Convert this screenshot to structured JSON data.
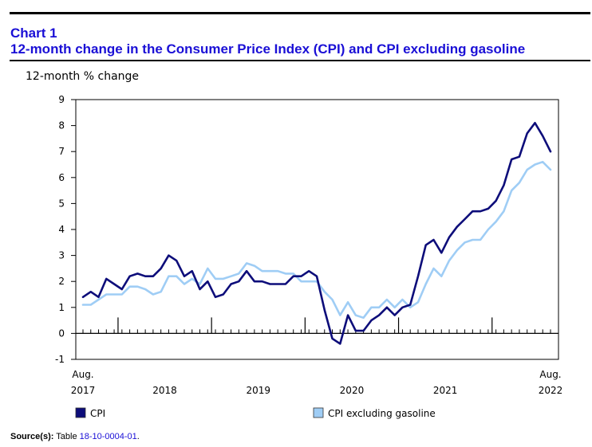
{
  "header": {
    "chart_number": "Chart 1",
    "title": "12-month change in the Consumer Price Index (CPI) and CPI excluding gasoline"
  },
  "source": {
    "label": "Source(s):",
    "text": "Table",
    "link": "18-10-0004-01",
    "suffix": "."
  },
  "colors": {
    "cpi": "#0d0d7a",
    "cpi_ex_gas": "#9fcdf5",
    "title": "#1a0fd6"
  },
  "chart_data": {
    "type": "line",
    "title": "12-month change in the Consumer Price Index (CPI) and CPI excluding gasoline",
    "ylabel": "12-month % change",
    "xlabel": "",
    "ylim": [
      -1,
      9
    ],
    "yticks": [
      -1,
      0,
      1,
      2,
      3,
      4,
      5,
      6,
      7,
      8,
      9
    ],
    "x_start": "Aug. 2017",
    "x_end": "Aug. 2022",
    "x_tick_labels": [
      {
        "month_index": 0,
        "line1": "Aug.",
        "line2": "2017"
      },
      {
        "month_index": 10.5,
        "line1": "",
        "line2": "2018"
      },
      {
        "month_index": 22.5,
        "line1": "",
        "line2": "2019"
      },
      {
        "month_index": 34.5,
        "line1": "",
        "line2": "2020"
      },
      {
        "month_index": 46.5,
        "line1": "",
        "line2": "2021"
      },
      {
        "month_index": 60,
        "line1": "Aug.",
        "line2": "2022"
      }
    ],
    "year_boundaries": [
      5,
      17,
      29,
      41,
      53
    ],
    "series": [
      {
        "name": "CPI",
        "values": [
          1.4,
          1.6,
          1.4,
          2.1,
          1.9,
          1.7,
          2.2,
          2.3,
          2.2,
          2.2,
          2.5,
          3.0,
          2.8,
          2.2,
          2.4,
          1.7,
          2.0,
          1.4,
          1.5,
          1.9,
          2.0,
          2.4,
          2.0,
          2.0,
          1.9,
          1.9,
          1.9,
          2.2,
          2.2,
          2.4,
          2.2,
          0.9,
          -0.2,
          -0.4,
          0.7,
          0.1,
          0.1,
          0.5,
          0.7,
          1.0,
          0.7,
          1.0,
          1.1,
          2.2,
          3.4,
          3.6,
          3.1,
          3.7,
          4.1,
          4.4,
          4.7,
          4.7,
          4.8,
          5.1,
          5.7,
          6.7,
          6.8,
          7.7,
          8.1,
          7.6,
          7.0
        ]
      },
      {
        "name": "CPI excluding gasoline",
        "values": [
          1.1,
          1.1,
          1.3,
          1.5,
          1.5,
          1.5,
          1.8,
          1.8,
          1.7,
          1.5,
          1.6,
          2.2,
          2.2,
          1.9,
          2.1,
          1.9,
          2.5,
          2.1,
          2.1,
          2.2,
          2.3,
          2.7,
          2.6,
          2.4,
          2.4,
          2.4,
          2.3,
          2.3,
          2.0,
          2.0,
          2.0,
          1.6,
          1.3,
          0.7,
          1.2,
          0.7,
          0.6,
          1.0,
          1.0,
          1.3,
          1.0,
          1.3,
          1.0,
          1.2,
          1.9,
          2.5,
          2.2,
          2.8,
          3.2,
          3.5,
          3.6,
          3.6,
          4.0,
          4.3,
          4.7,
          5.5,
          5.8,
          6.3,
          6.5,
          6.6,
          6.3
        ]
      }
    ],
    "legend": [
      {
        "name": "CPI"
      },
      {
        "name": "CPI excluding gasoline"
      }
    ],
    "legend_position": "bottom"
  }
}
